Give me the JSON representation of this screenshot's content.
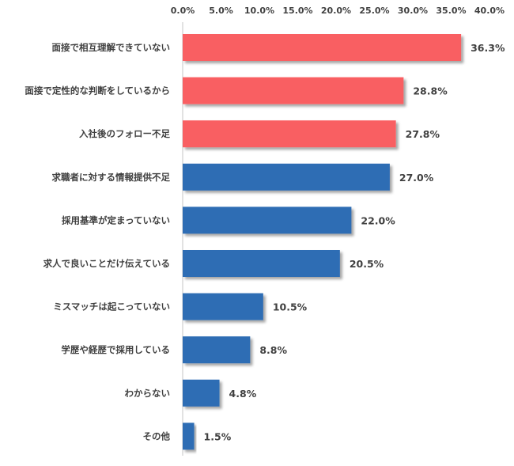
{
  "chart_data": {
    "type": "bar",
    "orientation": "horizontal",
    "title": "",
    "xlabel": "",
    "ylabel": "",
    "xlim": [
      0,
      40
    ],
    "ticks": [
      "0.0%",
      "5.0%",
      "10.0%",
      "15.0%",
      "20.0%",
      "25.0%",
      "30.0%",
      "35.0%",
      "40.0%"
    ],
    "tick_values": [
      0,
      5,
      10,
      15,
      20,
      25,
      30,
      35,
      40
    ],
    "axis_position": "top",
    "grid": false,
    "categories": [
      "面接で相互理解できていない",
      "面接で定性的な判断をしているから",
      "入社後のフォロー不足",
      "求職者に対する情報提供不足",
      "採用基準が定まっていない",
      "求人で良いことだけ伝えている",
      "ミスマッチは起こっていない",
      "学歴や経歴で採用している",
      "わからない",
      "その他"
    ],
    "values": [
      36.3,
      28.8,
      27.8,
      27.0,
      22.0,
      20.5,
      10.5,
      8.8,
      4.8,
      1.5
    ],
    "value_labels": [
      "36.3%",
      "28.8%",
      "27.8%",
      "27.0%",
      "22.0%",
      "20.5%",
      "10.5%",
      "8.8%",
      "4.8%",
      "1.5%"
    ],
    "highlight": [
      true,
      true,
      true,
      false,
      false,
      false,
      false,
      false,
      false,
      false
    ],
    "colors": {
      "highlight": "#f95f62",
      "normal": "#2e6db4",
      "axis": "#d9d9d9",
      "text": "#404040"
    }
  }
}
